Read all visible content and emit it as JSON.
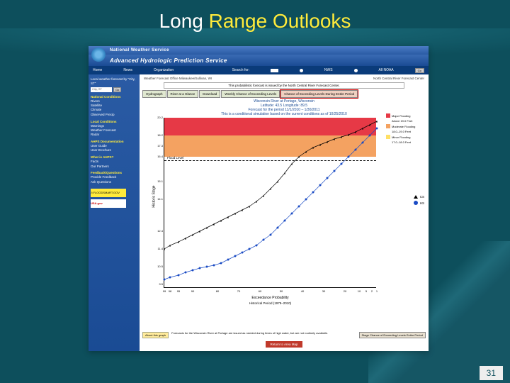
{
  "slide": {
    "title_a": "Long ",
    "title_b": "Range Outlooks",
    "page": "31"
  },
  "header": {
    "nws": "National Weather Service",
    "ahps": "Advanced Hydrologic Prediction Service",
    "nav": {
      "home": "Home",
      "news": "News",
      "org": "Organization",
      "search_lbl": "Search for:",
      "search_val": "",
      "r1": "NWS",
      "r2": "All NOAA",
      "go": "Go"
    }
  },
  "sidebar": {
    "local_head": "Local weather forecast by \"City, ST\"",
    "city_ph": "City, ST",
    "go": "Go",
    "g1_head": "National Conditions",
    "g1": [
      "Rivers",
      "Satellite",
      "Climate",
      "Observed Precip"
    ],
    "g2_head": "Local Conditions",
    "g2": [
      "Warnings",
      "Weather Forecast",
      "Radar"
    ],
    "g3_head": "AHPS Documentation",
    "g3": [
      "User Guide",
      "User Brochure"
    ],
    "g4_head": "What is AHPS?",
    "g4": [
      "Facts",
      "Our Partners"
    ],
    "g5_head": "Feedback/Questions",
    "g5": [
      "Provide Feedback",
      "Ask Questions"
    ],
    "badge1": "FLOODSMART.GOV",
    "badge2": "USA.gov"
  },
  "main": {
    "crumb_l": "Weather Forecast Office Milwaukee/Sullivan, WI",
    "crumb_r": "North Central River Forecast Center",
    "issued": "This probabilistic forecast is issued by the North Central River Forecast Center.",
    "tabs": [
      "Hydrograph",
      "River at a Glance",
      "Download",
      "Weekly Chance of Exceeding Levels",
      "Chance of Exceeding Levels During Entire Period"
    ],
    "about": "About this graph",
    "footer_text": "Forecasts for the Wisconsin River at Portage are issued as needed during times of high water, but are not routinely available.",
    "footer_tab": "Stage  Chance of Exceeding Levels Entire Period",
    "return": "Return to Area Map"
  },
  "chart": {
    "title1": "Wisconsin River at Portage, Wisconsin",
    "title2": "Latitude: 43.5    Longitude: 89.5",
    "title3": "Forecast for the period 11/1/2010 – 1/30/2011",
    "title4": "This is a conditional simulation based on the current conditions as of 10/25/2010",
    "ylabel": "Historic Stage",
    "y_ticks": [
      20.2,
      18.2,
      17.3,
      16.4,
      15.1,
      14.1,
      12.4,
      11.4,
      10.5,
      9.5
    ],
    "y_positions": [
      0,
      25,
      40,
      55,
      90,
      115,
      160,
      185,
      210,
      235
    ],
    "x_ticks": [
      "99",
      "98",
      "95",
      "90",
      "80",
      "70",
      "60",
      "50",
      "40",
      "30",
      "20",
      "10",
      "5",
      "2",
      "1"
    ],
    "x_positions": [
      0,
      8,
      20,
      40,
      75,
      105,
      135,
      165,
      195,
      225,
      255,
      275,
      285,
      293,
      300
    ],
    "xlabel": "Exceedance Probability",
    "xlabel2": "Historical Period (1979–2010)",
    "flood_label": "Flood Level",
    "legend_r": [
      {
        "c": "#e63946",
        "t": "Major Flooding"
      },
      {
        "c": "#ffffff",
        "t": "Above 19.0 Feet"
      },
      {
        "c": "#f4a261",
        "t": "Moderate Flooding"
      },
      {
        "c": "#ffffff",
        "t": "18.0–19.0 Feet"
      },
      {
        "c": "#ffe066",
        "t": "Minor Flooding"
      },
      {
        "c": "#ffffff",
        "t": "17.0–18.0 Feet"
      }
    ],
    "legend_m": [
      {
        "t": "CS"
      },
      {
        "t": "HS"
      }
    ],
    "series_cs": [
      [
        0,
        185
      ],
      [
        8,
        180
      ],
      [
        20,
        175
      ],
      [
        30,
        170
      ],
      [
        40,
        165
      ],
      [
        50,
        160
      ],
      [
        60,
        155
      ],
      [
        70,
        150
      ],
      [
        80,
        145
      ],
      [
        90,
        140
      ],
      [
        100,
        135
      ],
      [
        110,
        130
      ],
      [
        120,
        125
      ],
      [
        130,
        118
      ],
      [
        140,
        110
      ],
      [
        150,
        100
      ],
      [
        160,
        90
      ],
      [
        170,
        78
      ],
      [
        180,
        65
      ],
      [
        190,
        55
      ],
      [
        200,
        48
      ],
      [
        210,
        42
      ],
      [
        220,
        38
      ],
      [
        230,
        34
      ],
      [
        240,
        30
      ],
      [
        250,
        27
      ],
      [
        260,
        24
      ],
      [
        270,
        20
      ],
      [
        280,
        15
      ],
      [
        290,
        10
      ],
      [
        300,
        5
      ]
    ],
    "series_hs": [
      [
        0,
        228
      ],
      [
        8,
        225
      ],
      [
        20,
        222
      ],
      [
        30,
        218
      ],
      [
        40,
        215
      ],
      [
        50,
        212
      ],
      [
        60,
        210
      ],
      [
        70,
        208
      ],
      [
        80,
        205
      ],
      [
        90,
        200
      ],
      [
        100,
        195
      ],
      [
        110,
        190
      ],
      [
        120,
        185
      ],
      [
        130,
        180
      ],
      [
        140,
        172
      ],
      [
        150,
        165
      ],
      [
        160,
        155
      ],
      [
        170,
        145
      ],
      [
        180,
        135
      ],
      [
        190,
        125
      ],
      [
        200,
        115
      ],
      [
        210,
        105
      ],
      [
        220,
        95
      ],
      [
        230,
        85
      ],
      [
        240,
        75
      ],
      [
        250,
        65
      ],
      [
        260,
        55
      ],
      [
        270,
        45
      ],
      [
        280,
        35
      ],
      [
        290,
        25
      ],
      [
        300,
        15
      ]
    ]
  },
  "colors": {
    "band_red": "#e63946",
    "band_orange": "#f4a261",
    "hs": "#1a4bc4"
  }
}
